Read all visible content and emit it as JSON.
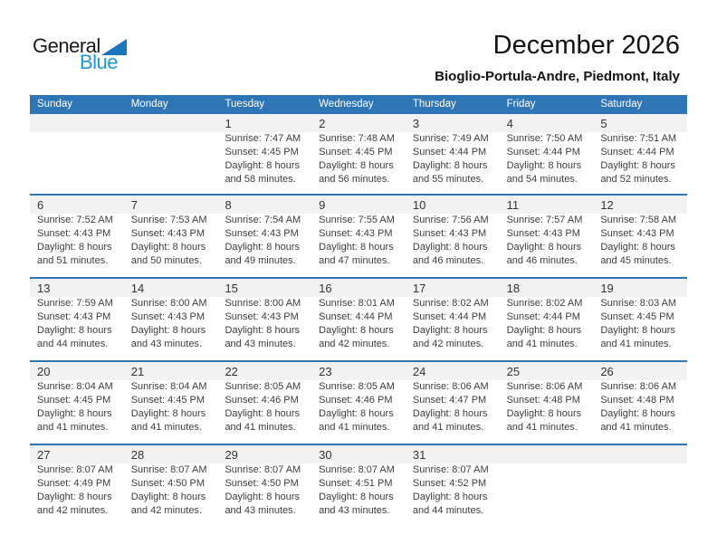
{
  "logo": {
    "text_black": "General",
    "text_blue": "Blue"
  },
  "header": {
    "title": "December 2026",
    "subtitle": "Bioglio-Portula-Andre, Piedmont, Italy"
  },
  "weekday_headers": [
    "Sunday",
    "Monday",
    "Tuesday",
    "Wednesday",
    "Thursday",
    "Friday",
    "Saturday"
  ],
  "colors": {
    "header_bar_blue": "#2e75b6",
    "week_divider_blue": "#2e75b6",
    "day_number_band_gray": "#f2f2f2",
    "logo_blue": "#2196d4",
    "logo_triangle_blue": "#1c75bc",
    "header_text": "#ffffff",
    "body_text": "#3d3d3d"
  },
  "weeks": [
    [
      null,
      null,
      {
        "day": "1",
        "sunrise": "Sunrise: 7:47 AM",
        "sunset": "Sunset: 4:45 PM",
        "daylight": "Daylight: 8 hours and 58 minutes."
      },
      {
        "day": "2",
        "sunrise": "Sunrise: 7:48 AM",
        "sunset": "Sunset: 4:45 PM",
        "daylight": "Daylight: 8 hours and 56 minutes."
      },
      {
        "day": "3",
        "sunrise": "Sunrise: 7:49 AM",
        "sunset": "Sunset: 4:44 PM",
        "daylight": "Daylight: 8 hours and 55 minutes."
      },
      {
        "day": "4",
        "sunrise": "Sunrise: 7:50 AM",
        "sunset": "Sunset: 4:44 PM",
        "daylight": "Daylight: 8 hours and 54 minutes."
      },
      {
        "day": "5",
        "sunrise": "Sunrise: 7:51 AM",
        "sunset": "Sunset: 4:44 PM",
        "daylight": "Daylight: 8 hours and 52 minutes."
      }
    ],
    [
      {
        "day": "6",
        "sunrise": "Sunrise: 7:52 AM",
        "sunset": "Sunset: 4:43 PM",
        "daylight": "Daylight: 8 hours and 51 minutes."
      },
      {
        "day": "7",
        "sunrise": "Sunrise: 7:53 AM",
        "sunset": "Sunset: 4:43 PM",
        "daylight": "Daylight: 8 hours and 50 minutes."
      },
      {
        "day": "8",
        "sunrise": "Sunrise: 7:54 AM",
        "sunset": "Sunset: 4:43 PM",
        "daylight": "Daylight: 8 hours and 49 minutes."
      },
      {
        "day": "9",
        "sunrise": "Sunrise: 7:55 AM",
        "sunset": "Sunset: 4:43 PM",
        "daylight": "Daylight: 8 hours and 47 minutes."
      },
      {
        "day": "10",
        "sunrise": "Sunrise: 7:56 AM",
        "sunset": "Sunset: 4:43 PM",
        "daylight": "Daylight: 8 hours and 46 minutes."
      },
      {
        "day": "11",
        "sunrise": "Sunrise: 7:57 AM",
        "sunset": "Sunset: 4:43 PM",
        "daylight": "Daylight: 8 hours and 46 minutes."
      },
      {
        "day": "12",
        "sunrise": "Sunrise: 7:58 AM",
        "sunset": "Sunset: 4:43 PM",
        "daylight": "Daylight: 8 hours and 45 minutes."
      }
    ],
    [
      {
        "day": "13",
        "sunrise": "Sunrise: 7:59 AM",
        "sunset": "Sunset: 4:43 PM",
        "daylight": "Daylight: 8 hours and 44 minutes."
      },
      {
        "day": "14",
        "sunrise": "Sunrise: 8:00 AM",
        "sunset": "Sunset: 4:43 PM",
        "daylight": "Daylight: 8 hours and 43 minutes."
      },
      {
        "day": "15",
        "sunrise": "Sunrise: 8:00 AM",
        "sunset": "Sunset: 4:43 PM",
        "daylight": "Daylight: 8 hours and 43 minutes."
      },
      {
        "day": "16",
        "sunrise": "Sunrise: 8:01 AM",
        "sunset": "Sunset: 4:44 PM",
        "daylight": "Daylight: 8 hours and 42 minutes."
      },
      {
        "day": "17",
        "sunrise": "Sunrise: 8:02 AM",
        "sunset": "Sunset: 4:44 PM",
        "daylight": "Daylight: 8 hours and 42 minutes."
      },
      {
        "day": "18",
        "sunrise": "Sunrise: 8:02 AM",
        "sunset": "Sunset: 4:44 PM",
        "daylight": "Daylight: 8 hours and 41 minutes."
      },
      {
        "day": "19",
        "sunrise": "Sunrise: 8:03 AM",
        "sunset": "Sunset: 4:45 PM",
        "daylight": "Daylight: 8 hours and 41 minutes."
      }
    ],
    [
      {
        "day": "20",
        "sunrise": "Sunrise: 8:04 AM",
        "sunset": "Sunset: 4:45 PM",
        "daylight": "Daylight: 8 hours and 41 minutes."
      },
      {
        "day": "21",
        "sunrise": "Sunrise: 8:04 AM",
        "sunset": "Sunset: 4:45 PM",
        "daylight": "Daylight: 8 hours and 41 minutes."
      },
      {
        "day": "22",
        "sunrise": "Sunrise: 8:05 AM",
        "sunset": "Sunset: 4:46 PM",
        "daylight": "Daylight: 8 hours and 41 minutes."
      },
      {
        "day": "23",
        "sunrise": "Sunrise: 8:05 AM",
        "sunset": "Sunset: 4:46 PM",
        "daylight": "Daylight: 8 hours and 41 minutes."
      },
      {
        "day": "24",
        "sunrise": "Sunrise: 8:06 AM",
        "sunset": "Sunset: 4:47 PM",
        "daylight": "Daylight: 8 hours and 41 minutes."
      },
      {
        "day": "25",
        "sunrise": "Sunrise: 8:06 AM",
        "sunset": "Sunset: 4:48 PM",
        "daylight": "Daylight: 8 hours and 41 minutes."
      },
      {
        "day": "26",
        "sunrise": "Sunrise: 8:06 AM",
        "sunset": "Sunset: 4:48 PM",
        "daylight": "Daylight: 8 hours and 41 minutes."
      }
    ],
    [
      {
        "day": "27",
        "sunrise": "Sunrise: 8:07 AM",
        "sunset": "Sunset: 4:49 PM",
        "daylight": "Daylight: 8 hours and 42 minutes."
      },
      {
        "day": "28",
        "sunrise": "Sunrise: 8:07 AM",
        "sunset": "Sunset: 4:50 PM",
        "daylight": "Daylight: 8 hours and 42 minutes."
      },
      {
        "day": "29",
        "sunrise": "Sunrise: 8:07 AM",
        "sunset": "Sunset: 4:50 PM",
        "daylight": "Daylight: 8 hours and 43 minutes."
      },
      {
        "day": "30",
        "sunrise": "Sunrise: 8:07 AM",
        "sunset": "Sunset: 4:51 PM",
        "daylight": "Daylight: 8 hours and 43 minutes."
      },
      {
        "day": "31",
        "sunrise": "Sunrise: 8:07 AM",
        "sunset": "Sunset: 4:52 PM",
        "daylight": "Daylight: 8 hours and 44 minutes."
      },
      null,
      null
    ]
  ]
}
